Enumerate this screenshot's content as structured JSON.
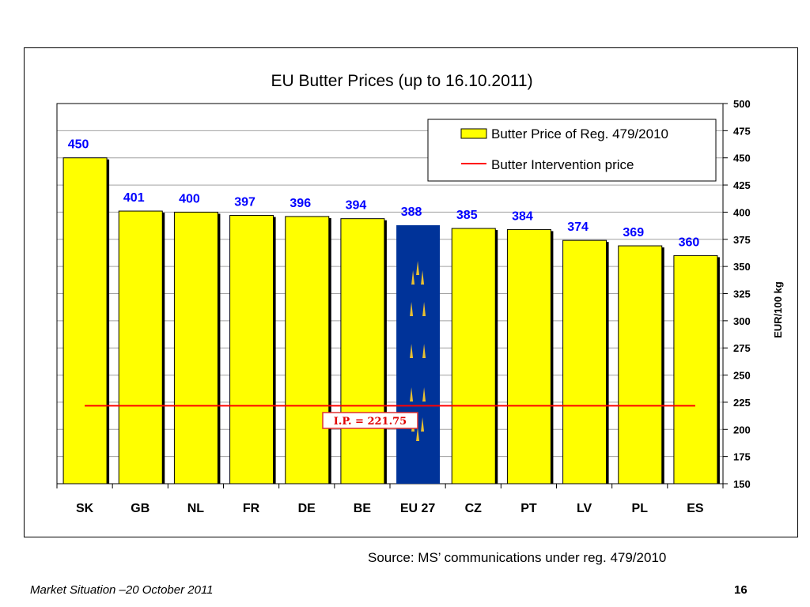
{
  "chart_data": {
    "type": "bar",
    "title": "EU Butter Prices  (up to 16.10.2011)",
    "xlabel": "",
    "ylabel": "EUR/100 kg",
    "ylim": [
      150,
      500
    ],
    "yticks": [
      150,
      175,
      200,
      225,
      250,
      275,
      300,
      325,
      350,
      375,
      400,
      425,
      450,
      475,
      500
    ],
    "grid": true,
    "categories": [
      "SK",
      "GB",
      "NL",
      "FR",
      "DE",
      "BE",
      "EU 27",
      "CZ",
      "PT",
      "LV",
      "PL",
      "ES"
    ],
    "series": [
      {
        "name": "Butter Price of Reg. 479/2010",
        "values": [
          450,
          401,
          400,
          397,
          396,
          394,
          388,
          385,
          384,
          374,
          369,
          360
        ],
        "color": "#FFFF00",
        "highlight": {
          "category": "EU 27",
          "color": "#003399"
        }
      },
      {
        "name": "Butter Intervention price",
        "type": "line",
        "value": 221.75,
        "color": "#FF0000"
      }
    ],
    "annotations": [
      "I.P. = 221.75"
    ],
    "label_color": "#0000FF",
    "legend_position": "top-right"
  },
  "source": "Source: MS’ communications under reg. 479/2010",
  "footer": {
    "left": "Market Situation –20 October 2011",
    "page": "16"
  }
}
